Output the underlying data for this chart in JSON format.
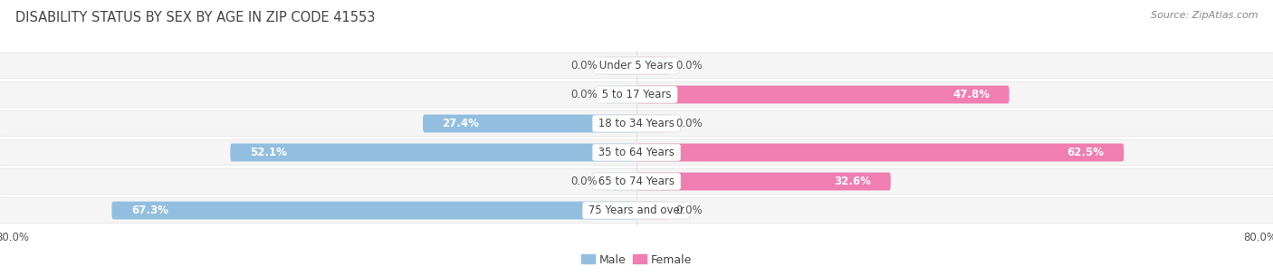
{
  "title": "DISABILITY STATUS BY SEX BY AGE IN ZIP CODE 41553",
  "source": "Source: ZipAtlas.com",
  "categories": [
    "Under 5 Years",
    "5 to 17 Years",
    "18 to 34 Years",
    "35 to 64 Years",
    "65 to 74 Years",
    "75 Years and over"
  ],
  "male_values": [
    0.0,
    0.0,
    27.4,
    52.1,
    0.0,
    67.3
  ],
  "female_values": [
    0.0,
    47.8,
    0.0,
    62.5,
    32.6,
    0.0
  ],
  "male_color": "#92BFE0",
  "female_color": "#F07EB0",
  "male_color_light": "#C5DCF0",
  "female_color_light": "#F9C0D8",
  "male_label": "Male",
  "female_label": "Female",
  "xlim": 80.0,
  "bar_height": 0.62,
  "row_bg": "#E8E8E8",
  "row_inner_bg": "#F5F5F5",
  "title_fontsize": 10.5,
  "label_fontsize": 8.5,
  "tick_fontsize": 8.5,
  "category_fontsize": 8.5,
  "source_fontsize": 8
}
